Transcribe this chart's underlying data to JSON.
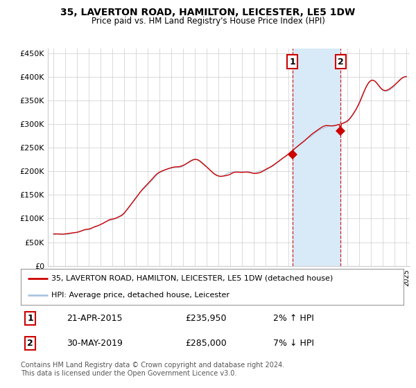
{
  "title": "35, LAVERTON ROAD, HAMILTON, LEICESTER, LE5 1DW",
  "subtitle": "Price paid vs. HM Land Registry's House Price Index (HPI)",
  "legend_line1": "35, LAVERTON ROAD, HAMILTON, LEICESTER, LE5 1DW (detached house)",
  "legend_line2": "HPI: Average price, detached house, Leicester",
  "transaction1_label": "1",
  "transaction1_date": "21-APR-2015",
  "transaction1_price": "£235,950",
  "transaction1_hpi": "2% ↑ HPI",
  "transaction2_label": "2",
  "transaction2_date": "30-MAY-2019",
  "transaction2_price": "£285,000",
  "transaction2_hpi": "7% ↓ HPI",
  "footer": "Contains HM Land Registry data © Crown copyright and database right 2024.\nThis data is licensed under the Open Government Licence v3.0.",
  "hpi_color": "#aac4e0",
  "price_color": "#cc0000",
  "background_color": "#ffffff",
  "grid_color": "#cccccc",
  "shading_color": "#d8eaf8",
  "ylim": [
    0,
    460000
  ],
  "yticks": [
    0,
    50000,
    100000,
    150000,
    200000,
    250000,
    300000,
    350000,
    400000,
    450000
  ],
  "start_year": 1995,
  "end_year": 2025,
  "transaction1_year": 2015.3,
  "transaction2_year": 2019.4,
  "transaction1_price_val": 235950,
  "transaction2_price_val": 285000,
  "base_years": [
    1995,
    1996,
    1997,
    1998,
    1999,
    2000,
    2001,
    2002,
    2003,
    2004,
    2005,
    2006,
    2007,
    2008,
    2009,
    2010,
    2011,
    2012,
    2013,
    2014,
    2015,
    2016,
    2017,
    2018,
    2019,
    2020,
    2021,
    2022,
    2023,
    2024,
    2025
  ],
  "base_vals": [
    65000,
    68000,
    72000,
    78000,
    88000,
    98000,
    112000,
    145000,
    172000,
    196000,
    206000,
    212000,
    226000,
    210000,
    190000,
    196000,
    200000,
    196000,
    202000,
    218000,
    238000,
    258000,
    278000,
    292000,
    298000,
    308000,
    345000,
    392000,
    372000,
    382000,
    402000
  ]
}
